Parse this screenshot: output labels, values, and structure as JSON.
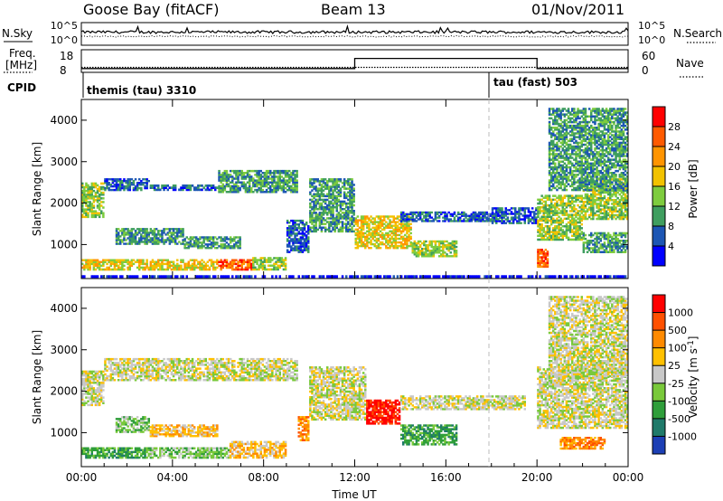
{
  "header": {
    "station": "Goose Bay (fitACF)",
    "beam": "Beam 13",
    "date": "01/Nov/2011"
  },
  "colors": {
    "background": "#ffffff",
    "axis": "#000000",
    "ground_scatter": "#c8c8c8"
  },
  "chart_data": [
    {
      "type": "line",
      "panel": "noise",
      "series": [
        {
          "name": "N.Sky",
          "style": "solid"
        },
        {
          "name": "N.Search",
          "style": "dotted"
        }
      ],
      "ytick_labels": [
        "10^5",
        "10^0"
      ],
      "ytick_labels_right": [
        "10^5",
        "10^0"
      ]
    },
    {
      "type": "line",
      "panel": "frequency",
      "series": [
        {
          "name": "Freq.",
          "unit": "[MHz]",
          "style": "dotted",
          "x": [
            "00:00",
            "24:00"
          ],
          "values": [
            10.2,
            10.2
          ]
        },
        {
          "name": "Nave",
          "style": "solid",
          "x": [
            "00:00",
            "12:00",
            "12:00",
            "20:00",
            "20:00",
            "24:00"
          ],
          "values": [
            10,
            10,
            37,
            37,
            10,
            10
          ]
        }
      ],
      "ytick_labels": [
        "18",
        "8"
      ],
      "ytick_labels_right": [
        "60",
        "0"
      ],
      "ylim_left": [
        8,
        18
      ],
      "ylim_right": [
        0,
        60
      ]
    },
    {
      "type": "table",
      "panel": "cpid",
      "label": "CPID",
      "entries": [
        {
          "start": "00:00",
          "text": "themis (tau) 3310"
        },
        {
          "start": "18:00",
          "text": "tau (fast) 503"
        }
      ]
    },
    {
      "type": "heatmap",
      "panel": "power",
      "ylabel": "Slant Range [km]",
      "ytick_labels": [
        "1000",
        "2000",
        "3000",
        "4000"
      ],
      "ylim": [
        180,
        4500
      ],
      "colorbar_label": "Power [dB]",
      "colorbar_ticks": [
        "4",
        "8",
        "12",
        "16",
        "20",
        "24",
        "28"
      ],
      "colorbar_colors": [
        "#0000ff",
        "#1c56b4",
        "#3f9e5f",
        "#7ecc3e",
        "#f2c200",
        "#ff9400",
        "#ff5a00",
        "#ff0000"
      ],
      "regions": [
        {
          "t": [
            0.0,
            1.0
          ],
          "r": [
            1650,
            2500
          ],
          "level": 3
        },
        {
          "t": [
            1.0,
            3.0
          ],
          "r": [
            2300,
            2600
          ],
          "level": 1
        },
        {
          "t": [
            3.0,
            6.0
          ],
          "r": [
            2300,
            2450
          ],
          "level": 1
        },
        {
          "t": [
            6.0,
            9.5
          ],
          "r": [
            2250,
            2800
          ],
          "level": 2
        },
        {
          "t": [
            1.5,
            4.5
          ],
          "r": [
            1000,
            1400
          ],
          "level": 2
        },
        {
          "t": [
            4.5,
            7.0
          ],
          "r": [
            900,
            1200
          ],
          "level": 2
        },
        {
          "t": [
            0.0,
            6.0
          ],
          "r": [
            380,
            650
          ],
          "level": 4
        },
        {
          "t": [
            6.0,
            7.5
          ],
          "r": [
            380,
            650
          ],
          "level": 6
        },
        {
          "t": [
            7.5,
            9.0
          ],
          "r": [
            380,
            700
          ],
          "level": 3
        },
        {
          "t": [
            9.0,
            10.0
          ],
          "r": [
            800,
            1600
          ],
          "level": 1
        },
        {
          "t": [
            10.0,
            12.0
          ],
          "r": [
            1300,
            2600
          ],
          "level": 2
        },
        {
          "t": [
            12.0,
            14.5
          ],
          "r": [
            900,
            1700
          ],
          "level": 4
        },
        {
          "t": [
            14.5,
            16.5
          ],
          "r": [
            700,
            1100
          ],
          "level": 3
        },
        {
          "t": [
            14.0,
            18.5
          ],
          "r": [
            1550,
            1800
          ],
          "level": 1
        },
        {
          "t": [
            18.0,
            20.0
          ],
          "r": [
            1500,
            1900
          ],
          "level": 1
        },
        {
          "t": [
            20.0,
            22.0
          ],
          "r": [
            1100,
            2200
          ],
          "level": 3
        },
        {
          "t": [
            22.0,
            24.0
          ],
          "r": [
            1600,
            2600
          ],
          "level": 3
        },
        {
          "t": [
            20.0,
            20.5
          ],
          "r": [
            450,
            900
          ],
          "level": 6
        },
        {
          "t": [
            20.5,
            24.0
          ],
          "r": [
            2300,
            4300
          ],
          "level": 2
        },
        {
          "t": [
            22.0,
            24.0
          ],
          "r": [
            800,
            1300
          ],
          "level": 2
        },
        {
          "t": [
            0.0,
            24.0
          ],
          "r": [
            200,
            260
          ],
          "level": 0
        }
      ]
    },
    {
      "type": "heatmap",
      "panel": "velocity",
      "ylabel": "Slant Range [km]",
      "ytick_labels": [
        "1000",
        "2000",
        "3000",
        "4000"
      ],
      "ylim": [
        180,
        4500
      ],
      "xlabel": "Time UT",
      "xtick_labels": [
        "00:00",
        "04:00",
        "08:00",
        "12:00",
        "16:00",
        "20:00",
        "00:00"
      ],
      "xlim": [
        0,
        24
      ],
      "colorbar_label": "Velocity [m s^-1]",
      "colorbar_ticks": [
        "1000",
        "500",
        "100",
        "25",
        "-25",
        "-100",
        "-500",
        "-1000"
      ],
      "colorbar_colors": [
        "#1c3fb5",
        "#1f7a6a",
        "#2f9e3a",
        "#79c93a",
        "#c8c8c8",
        "#ffc000",
        "#ff8a00",
        "#ff5000",
        "#ff0000"
      ],
      "regions": [
        {
          "t": [
            0.0,
            1.0
          ],
          "r": [
            1650,
            2500
          ],
          "level": 4
        },
        {
          "t": [
            1.0,
            9.5
          ],
          "r": [
            2250,
            2800
          ],
          "level": 4
        },
        {
          "t": [
            1.5,
            3.0
          ],
          "r": [
            1000,
            1400
          ],
          "level": 3
        },
        {
          "t": [
            3.0,
            6.0
          ],
          "r": [
            900,
            1200
          ],
          "level": 5
        },
        {
          "t": [
            0.0,
            3.0
          ],
          "r": [
            380,
            650
          ],
          "level": 2
        },
        {
          "t": [
            3.0,
            6.5
          ],
          "r": [
            380,
            650
          ],
          "level": 3
        },
        {
          "t": [
            6.5,
            9.0
          ],
          "r": [
            380,
            800
          ],
          "level": 5
        },
        {
          "t": [
            9.5,
            10.0
          ],
          "r": [
            800,
            1400
          ],
          "level": 6
        },
        {
          "t": [
            10.0,
            12.5
          ],
          "r": [
            1300,
            2600
          ],
          "level": 4
        },
        {
          "t": [
            12.5,
            14.0
          ],
          "r": [
            1200,
            1800
          ],
          "level": 8
        },
        {
          "t": [
            14.0,
            16.5
          ],
          "r": [
            700,
            1200
          ],
          "level": 2
        },
        {
          "t": [
            14.0,
            19.5
          ],
          "r": [
            1550,
            1900
          ],
          "level": 4
        },
        {
          "t": [
            20.0,
            24.0
          ],
          "r": [
            1100,
            2600
          ],
          "level": 4
        },
        {
          "t": [
            20.5,
            24.0
          ],
          "r": [
            2300,
            4300
          ],
          "level": 4
        },
        {
          "t": [
            21.0,
            23.0
          ],
          "r": [
            600,
            900
          ],
          "level": 6
        }
      ]
    }
  ]
}
